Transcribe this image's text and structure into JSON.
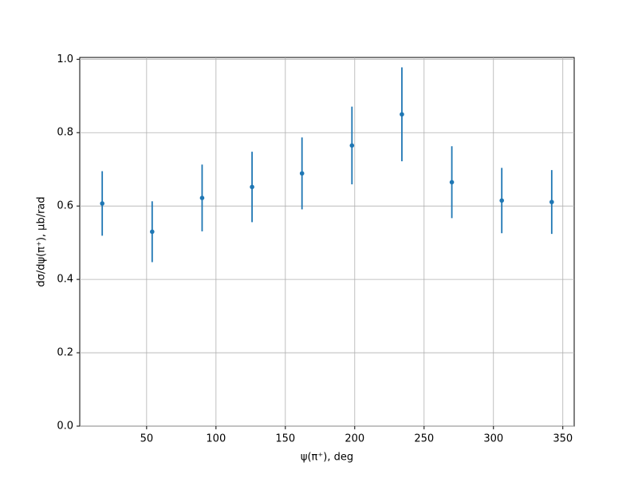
{
  "chart_data": {
    "type": "errorbar",
    "xlabel": "ψ(π⁺), deg",
    "ylabel": "dσ/dψ(π⁺), μb/rad",
    "x": [
      18,
      54,
      90,
      126,
      162,
      198,
      234,
      270,
      306,
      342
    ],
    "values": [
      0.607,
      0.53,
      0.622,
      0.652,
      0.689,
      0.765,
      0.85,
      0.665,
      0.615,
      0.611
    ],
    "errors": [
      0.088,
      0.083,
      0.091,
      0.096,
      0.098,
      0.106,
      0.128,
      0.098,
      0.089,
      0.087
    ],
    "color": "#1f77b4",
    "xlim": [
      1.8,
      358.2
    ],
    "xticks": [
      50,
      100,
      150,
      200,
      250,
      300,
      350
    ],
    "ylim": [
      0,
      1.005
    ],
    "yticks": [
      {
        "value": 0,
        "label": "0.0"
      },
      0.2,
      0.4,
      0.6,
      0.8,
      {
        "value": 1,
        "label": "1.0"
      }
    ],
    "grid": true
  }
}
